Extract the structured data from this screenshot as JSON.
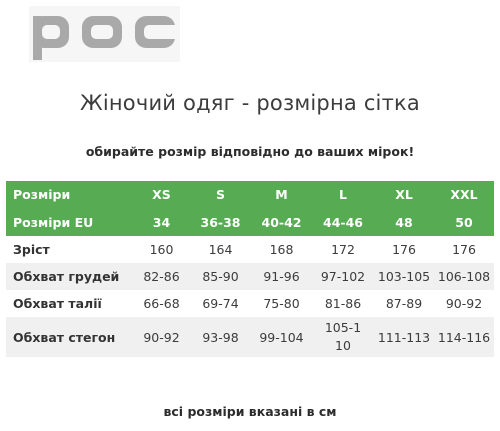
{
  "logo": {
    "text": "POC",
    "color": "#a9a9a9",
    "background": "#f6f6f6"
  },
  "title": "Жіночий одяг - розмірна сітка",
  "subtitle": "обирайте розмір відповідно до ваших мірок!",
  "accent_color": "#56ab53",
  "table": {
    "header_rows": [
      {
        "label": "Розміри",
        "cells": [
          "XS",
          "S",
          "M",
          "L",
          "XL",
          "XXL"
        ]
      },
      {
        "label": "Розміри EU",
        "cells": [
          "34",
          "36-38",
          "40-42",
          "44-46",
          "48",
          "50"
        ]
      }
    ],
    "body_rows": [
      {
        "label": "Зріст",
        "cells": [
          "160",
          "164",
          "168",
          "172",
          "176",
          "176"
        ]
      },
      {
        "label": "Обхват грудей",
        "cells": [
          "82-86",
          "85-90",
          "91-96",
          "97-102",
          "103-105",
          "106-108"
        ]
      },
      {
        "label": "Обхват талії",
        "cells": [
          "66-68",
          "69-74",
          "75-80",
          "81-86",
          "87-89",
          "90-92"
        ]
      },
      {
        "label": "Обхват стегон",
        "cells": [
          "90-92",
          "93-98",
          "99-104",
          "105-110",
          "111-113",
          "114-116"
        ]
      }
    ]
  },
  "footer": "всі розміри вказані в см"
}
